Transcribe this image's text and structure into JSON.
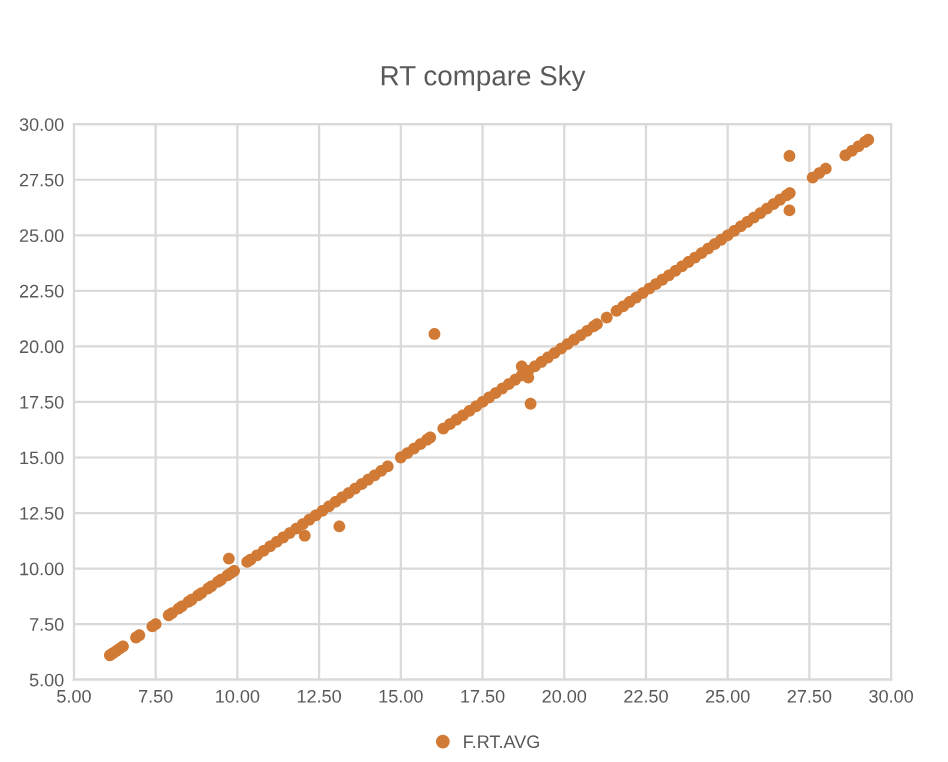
{
  "chart_data": {
    "type": "scatter",
    "title": "RT compare Sky",
    "series": [
      {
        "name": "F.RT.AVG",
        "color": "#d07a35",
        "x": [
          6.1,
          6.2,
          6.3,
          6.4,
          6.5,
          6.9,
          7.0,
          7.4,
          7.5,
          7.9,
          8.0,
          8.2,
          8.3,
          8.5,
          8.6,
          8.8,
          8.9,
          9.1,
          9.2,
          9.4,
          9.5,
          9.7,
          9.8,
          9.9,
          10.3,
          10.4,
          10.6,
          10.8,
          11.0,
          11.2,
          11.4,
          11.6,
          11.8,
          12.0,
          12.2,
          12.4,
          12.6,
          12.8,
          13.0,
          13.2,
          13.4,
          13.6,
          13.8,
          14.0,
          14.2,
          14.4,
          14.6,
          15.0,
          15.2,
          15.4,
          15.6,
          15.8,
          15.9,
          16.3,
          16.5,
          16.7,
          16.9,
          17.1,
          17.3,
          17.5,
          17.7,
          17.9,
          18.1,
          18.3,
          18.5,
          18.7,
          18.9,
          19.1,
          19.3,
          19.5,
          19.7,
          19.9,
          20.1,
          20.3,
          20.5,
          20.7,
          20.9,
          21.0,
          21.3,
          21.6,
          21.8,
          22.0,
          22.2,
          22.4,
          22.6,
          22.8,
          23.0,
          23.2,
          23.4,
          23.6,
          23.8,
          24.0,
          24.2,
          24.4,
          24.6,
          24.8,
          25.0,
          25.2,
          25.4,
          25.6,
          25.8,
          26.0,
          26.2,
          26.4,
          26.6,
          26.8,
          26.9,
          27.6,
          27.8,
          28.0,
          28.6,
          28.8,
          29.0,
          29.2,
          29.3,
          9.74,
          12.06,
          13.12,
          16.03,
          18.97,
          26.89,
          26.89,
          18.7,
          18.9
        ],
        "values": [
          6.1,
          6.2,
          6.3,
          6.4,
          6.5,
          6.9,
          7.0,
          7.4,
          7.5,
          7.9,
          8.0,
          8.2,
          8.3,
          8.5,
          8.6,
          8.8,
          8.9,
          9.1,
          9.2,
          9.4,
          9.5,
          9.7,
          9.8,
          9.9,
          10.3,
          10.4,
          10.6,
          10.8,
          11.0,
          11.2,
          11.4,
          11.6,
          11.8,
          12.0,
          12.2,
          12.4,
          12.6,
          12.8,
          13.0,
          13.2,
          13.4,
          13.6,
          13.8,
          14.0,
          14.2,
          14.4,
          14.6,
          15.0,
          15.2,
          15.4,
          15.6,
          15.8,
          15.9,
          16.3,
          16.5,
          16.7,
          16.9,
          17.1,
          17.3,
          17.5,
          17.7,
          17.9,
          18.1,
          18.3,
          18.5,
          18.7,
          18.9,
          19.1,
          19.3,
          19.5,
          19.7,
          19.9,
          20.1,
          20.3,
          20.5,
          20.7,
          20.9,
          21.0,
          21.3,
          21.6,
          21.8,
          22.0,
          22.2,
          22.4,
          22.6,
          22.8,
          23.0,
          23.2,
          23.4,
          23.6,
          23.8,
          24.0,
          24.2,
          24.4,
          24.6,
          24.8,
          25.0,
          25.2,
          25.4,
          25.6,
          25.8,
          26.0,
          26.2,
          26.4,
          26.6,
          26.8,
          26.9,
          27.6,
          27.8,
          28.0,
          28.6,
          28.8,
          29.0,
          29.2,
          29.3,
          10.45,
          11.48,
          11.9,
          20.56,
          17.42,
          28.57,
          26.12,
          19.1,
          18.6
        ]
      }
    ],
    "xlim": [
      5,
      30
    ],
    "ylim": [
      5,
      30
    ],
    "xticks": [
      {
        "value": 5,
        "label": "5.00"
      },
      {
        "value": 7.5,
        "label": "7.50"
      },
      {
        "value": 10,
        "label": "10.00"
      },
      {
        "value": 12.5,
        "label": "12.50"
      },
      {
        "value": 15,
        "label": "15.00"
      },
      {
        "value": 17.5,
        "label": "17.50"
      },
      {
        "value": 20,
        "label": "20.00"
      },
      {
        "value": 22.5,
        "label": "22.50"
      },
      {
        "value": 25,
        "label": "25.00"
      },
      {
        "value": 27.5,
        "label": "27.50"
      },
      {
        "value": 30,
        "label": "30.00"
      }
    ],
    "yticks": [
      {
        "value": 5,
        "label": "5.00"
      },
      {
        "value": 7.5,
        "label": "7.50"
      },
      {
        "value": 10,
        "label": "10.00"
      },
      {
        "value": 12.5,
        "label": "12.50"
      },
      {
        "value": 15,
        "label": "15.00"
      },
      {
        "value": 17.5,
        "label": "17.50"
      },
      {
        "value": 20,
        "label": "20.00"
      },
      {
        "value": 22.5,
        "label": "22.50"
      },
      {
        "value": 25,
        "label": "25.00"
      },
      {
        "value": 27.5,
        "label": "27.50"
      },
      {
        "value": 30,
        "label": "30.00"
      }
    ],
    "grid": true,
    "legend": "bottom",
    "marker": "circle"
  }
}
